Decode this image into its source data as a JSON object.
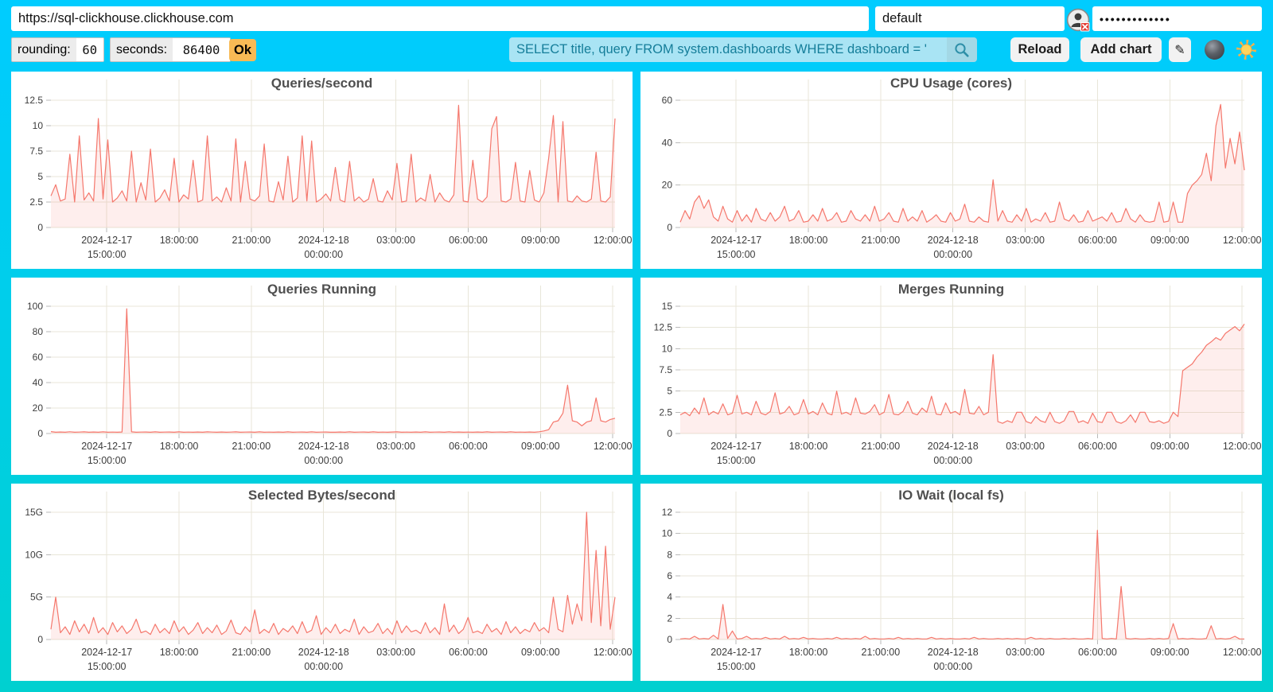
{
  "topbar": {
    "url": "https://sql-clickhouse.clickhouse.com",
    "user": "default",
    "password_masked": "•••••••••••••",
    "rounding_label": "rounding:",
    "rounding_value": "60",
    "seconds_label": "seconds:",
    "seconds_value": "86400",
    "ok_label": "Ok",
    "search_value": "SELECT title, query FROM system.dashboards WHERE dashboard = '",
    "reload_label": "Reload",
    "add_chart_label": "Add chart",
    "edit_icon": "✎"
  },
  "colors": {
    "background_top": "#00ccff",
    "background_bottom": "#00d0d0",
    "line": "#f5776c",
    "fill": "rgba(245,119,108,0.12)",
    "grid": "#e8e6d9",
    "tick": "#b9b9b9",
    "axis_text": "#3c3c3c",
    "ok_accent": "#f8ba55",
    "search_text": "#157e9a"
  },
  "time_axis": {
    "ticks": [
      {
        "line1": "2024-12-17",
        "line2": "15:00:00"
      },
      {
        "line1": "18:00:00",
        "line2": ""
      },
      {
        "line1": "21:00:00",
        "line2": ""
      },
      {
        "line1": "2024-12-18",
        "line2": "00:00:00"
      },
      {
        "line1": "03:00:00",
        "line2": ""
      },
      {
        "line1": "06:00:00",
        "line2": ""
      },
      {
        "line1": "09:00:00",
        "line2": ""
      },
      {
        "line1": "12:00:00",
        "line2": ""
      }
    ]
  },
  "chart_data": [
    {
      "type": "area",
      "title": "Queries/second",
      "ymax": 12.5,
      "yticks": [
        0,
        2.5,
        5,
        7.5,
        10,
        12.5
      ],
      "ytick_labels": [
        "0",
        "2.5",
        "5",
        "7.5",
        "10",
        "12.5"
      ],
      "values": [
        3.1,
        4.2,
        2.6,
        2.8,
        7.2,
        2.5,
        9.0,
        2.7,
        3.4,
        2.6,
        10.7,
        2.8,
        8.6,
        2.5,
        2.9,
        3.6,
        2.6,
        7.5,
        2.5,
        4.4,
        2.7,
        7.7,
        2.5,
        2.9,
        3.7,
        2.6,
        6.8,
        2.5,
        3.2,
        2.8,
        6.6,
        2.5,
        2.7,
        9.0,
        2.6,
        3.0,
        2.5,
        3.9,
        2.6,
        8.7,
        2.5,
        6.5,
        2.8,
        2.6,
        3.1,
        8.2,
        2.6,
        2.5,
        4.5,
        2.7,
        7.0,
        2.5,
        2.9,
        9.0,
        2.6,
        8.5,
        2.5,
        2.8,
        3.3,
        2.6,
        5.9,
        2.7,
        2.5,
        6.5,
        2.6,
        3.0,
        2.5,
        2.8,
        4.8,
        2.6,
        2.5,
        3.6,
        2.7,
        6.3,
        2.5,
        2.6,
        7.2,
        2.5,
        2.9,
        2.6,
        5.2,
        2.5,
        3.4,
        2.7,
        2.5,
        3.2,
        12.0,
        2.6,
        2.5,
        6.6,
        2.8,
        2.5,
        3.0,
        9.7,
        10.9,
        2.6,
        2.5,
        2.8,
        6.4,
        2.6,
        2.5,
        5.6,
        2.7,
        2.5,
        3.4,
        6.8,
        11.0,
        2.5,
        10.4,
        2.6,
        2.5,
        3.1,
        2.6,
        2.5,
        2.8,
        7.4,
        2.6,
        2.5,
        3.0,
        10.7
      ]
    },
    {
      "type": "area",
      "title": "CPU Usage (cores)",
      "ymax": 60,
      "yticks": [
        0,
        20,
        40,
        60
      ],
      "ytick_labels": [
        "0",
        "20",
        "40",
        "60"
      ],
      "values": [
        2.5,
        8,
        4,
        12,
        15,
        9,
        13,
        5,
        3,
        10,
        4,
        2.5,
        8,
        3,
        6,
        2.5,
        9,
        4,
        3,
        7,
        3,
        5,
        10,
        3,
        4,
        8,
        2.5,
        3,
        6,
        3,
        9,
        3,
        4,
        7,
        2.5,
        3,
        8,
        4,
        3,
        6,
        3,
        10,
        3,
        4,
        7,
        3,
        2.5,
        9,
        3,
        5,
        3,
        8,
        2.5,
        4,
        6,
        3,
        2.5,
        7,
        3,
        4,
        11,
        3,
        2.5,
        5,
        3,
        2.5,
        22.5,
        3,
        8,
        3,
        2.5,
        6,
        3,
        9,
        2.5,
        4,
        3,
        7,
        2.5,
        3,
        12,
        4,
        3,
        6,
        2.5,
        3,
        8,
        3,
        4,
        5,
        3,
        7,
        2.5,
        3,
        9,
        4,
        2.5,
        6,
        3,
        2.5,
        3,
        12,
        2.5,
        3,
        12,
        2.5,
        2.5,
        16,
        20,
        22,
        25,
        35,
        22,
        48,
        58,
        28,
        42,
        30,
        45,
        27
      ]
    },
    {
      "type": "area",
      "title": "Queries Running",
      "ymax": 100,
      "yticks": [
        0,
        20,
        40,
        60,
        80,
        100
      ],
      "ytick_labels": [
        "0",
        "20",
        "40",
        "60",
        "80",
        "100"
      ],
      "values": [
        1.5,
        1,
        1.2,
        1,
        1.4,
        1,
        1.1,
        1.3,
        1,
        1.2,
        1,
        1.3,
        1,
        1.1,
        1,
        1.2,
        98,
        1.3,
        1,
        1.1,
        1.2,
        1,
        1.3,
        1,
        1.1,
        1.2,
        1,
        1.3,
        1,
        1.1,
        1,
        1.2,
        1,
        1.3,
        1.1,
        1,
        1.2,
        1,
        1.1,
        1.3,
        1,
        1.1,
        1.2,
        1,
        1.3,
        1,
        1.1,
        1,
        1.2,
        1,
        1.3,
        1,
        1.1,
        1.2,
        1,
        1.3,
        1,
        1.1,
        1.2,
        1,
        1,
        1.2,
        1,
        1.3,
        1,
        1.1,
        1.2,
        1,
        1.3,
        1,
        1.1,
        1,
        1.2,
        1.3,
        1,
        1.1,
        1,
        1.2,
        1,
        1.3,
        1,
        1.1,
        1.2,
        1,
        1.3,
        1,
        1.2,
        1,
        1.1,
        1,
        1.2,
        1,
        1.3,
        1,
        1.1,
        1.2,
        1,
        1.3,
        1,
        1.1,
        1,
        1.2,
        1,
        1.4,
        2,
        3,
        9,
        10,
        16,
        38,
        10,
        9,
        6,
        9,
        10,
        28,
        10,
        9,
        11,
        12
      ]
    },
    {
      "type": "area",
      "title": "Merges Running",
      "ymax": 15,
      "yticks": [
        0,
        2.5,
        5,
        7.5,
        10,
        12.5,
        15
      ],
      "ytick_labels": [
        "0",
        "2.5",
        "5",
        "7.5",
        "10",
        "12.5",
        "15"
      ],
      "values": [
        2.2,
        2.5,
        2.1,
        3.0,
        2.3,
        4.2,
        2.2,
        2.6,
        2.3,
        3.5,
        2.2,
        2.4,
        4.5,
        2.3,
        2.5,
        2.2,
        3.8,
        2.4,
        2.2,
        2.6,
        4.8,
        2.3,
        2.5,
        3.2,
        2.2,
        2.4,
        4.0,
        2.3,
        2.6,
        2.2,
        3.6,
        2.4,
        2.2,
        5.0,
        2.3,
        2.5,
        2.2,
        4.2,
        2.4,
        2.3,
        2.6,
        3.4,
        2.2,
        2.5,
        4.6,
        2.3,
        2.2,
        2.6,
        3.8,
        2.4,
        2.2,
        3.0,
        2.5,
        4.4,
        2.3,
        2.2,
        3.6,
        2.4,
        2.6,
        2.2,
        5.2,
        2.4,
        2.3,
        3.2,
        2.2,
        2.5,
        9.3,
        1.4,
        1.2,
        1.5,
        1.3,
        2.5,
        2.5,
        1.4,
        1.2,
        2.0,
        1.5,
        1.3,
        2.5,
        1.4,
        1.2,
        1.5,
        2.6,
        2.6,
        1.3,
        1.5,
        1.2,
        2.4,
        1.4,
        1.3,
        2.5,
        2.5,
        1.4,
        1.2,
        1.5,
        2.2,
        1.3,
        2.5,
        2.5,
        1.4,
        1.3,
        1.5,
        1.2,
        1.4,
        2.5,
        2.0,
        7.4,
        7.8,
        8.2,
        9.0,
        9.6,
        10.4,
        10.8,
        11.3,
        11.0,
        11.8,
        12.2,
        12.6,
        12.1,
        12.9
      ]
    },
    {
      "type": "area",
      "title": "Selected Bytes/second",
      "ymax": 15,
      "yticks": [
        0,
        5,
        10,
        15
      ],
      "ytick_labels": [
        "0",
        "5G",
        "10G",
        "15G"
      ],
      "values": [
        1.2,
        5.0,
        0.8,
        1.5,
        0.6,
        2.2,
        0.9,
        1.8,
        0.7,
        2.6,
        0.8,
        1.4,
        0.6,
        2.0,
        0.9,
        1.6,
        0.7,
        1.2,
        2.4,
        0.8,
        1.0,
        0.6,
        1.8,
        0.8,
        1.3,
        0.7,
        2.2,
        0.9,
        1.5,
        0.6,
        1.1,
        2.0,
        0.7,
        1.4,
        0.8,
        1.7,
        0.6,
        1.0,
        2.3,
        0.8,
        0.6,
        1.5,
        0.9,
        3.5,
        0.7,
        1.2,
        0.8,
        1.9,
        0.6,
        1.3,
        0.9,
        1.6,
        0.7,
        2.1,
        0.8,
        1.1,
        2.8,
        0.6,
        1.4,
        0.8,
        1.8,
        0.7,
        1.2,
        0.9,
        2.4,
        0.6,
        1.5,
        0.8,
        1.0,
        1.9,
        0.7,
        1.3,
        0.6,
        2.2,
        0.8,
        1.6,
        0.9,
        1.1,
        0.7,
        2.0,
        0.8,
        1.4,
        0.6,
        4.2,
        0.9,
        1.7,
        0.7,
        1.2,
        2.6,
        0.8,
        1.0,
        0.7,
        1.8,
        0.9,
        1.3,
        0.6,
        2.1,
        0.8,
        1.5,
        0.7,
        1.2,
        0.9,
        2.0,
        1.0,
        1.4,
        0.8,
        5.0,
        1.2,
        0.9,
        5.2,
        1.8,
        4.2,
        2.2,
        15.0,
        2.0,
        10.5,
        1.6,
        11.0,
        1.2,
        5.0
      ]
    },
    {
      "type": "area",
      "title": "IO Wait (local fs)",
      "ymax": 12,
      "yticks": [
        0,
        2,
        4,
        6,
        8,
        10,
        12
      ],
      "ytick_labels": [
        "0",
        "2",
        "4",
        "6",
        "8",
        "10",
        "12"
      ],
      "values": [
        0.05,
        0.1,
        0.05,
        0.3,
        0.05,
        0.1,
        0.05,
        0.4,
        0.05,
        3.3,
        0.1,
        0.8,
        0.05,
        0.1,
        0.3,
        0.05,
        0.1,
        0.05,
        0.2,
        0.05,
        0.1,
        0.05,
        0.3,
        0.05,
        0.1,
        0.05,
        0.2,
        0.05,
        0.1,
        0.05,
        0.05,
        0.1,
        0.05,
        0.2,
        0.05,
        0.1,
        0.05,
        0.1,
        0.05,
        0.3,
        0.05,
        0.1,
        0.05,
        0.05,
        0.1,
        0.05,
        0.2,
        0.05,
        0.1,
        0.05,
        0.1,
        0.05,
        0.05,
        0.2,
        0.05,
        0.1,
        0.05,
        0.1,
        0.05,
        0.05,
        0.1,
        0.05,
        0.2,
        0.05,
        0.1,
        0.05,
        0.05,
        0.1,
        0.05,
        0.1,
        0.05,
        0.1,
        0.05,
        0.05,
        0.2,
        0.05,
        0.1,
        0.05,
        0.1,
        0.05,
        0.05,
        0.1,
        0.05,
        0.1,
        0.05,
        0.05,
        0.1,
        0.05,
        10.3,
        0.1,
        0.05,
        0.1,
        0.05,
        5.0,
        0.1,
        0.05,
        0.1,
        0.05,
        0.05,
        0.1,
        0.05,
        0.1,
        0.05,
        0.1,
        1.5,
        0.05,
        0.1,
        0.05,
        0.1,
        0.05,
        0.05,
        0.1,
        1.3,
        0.05,
        0.1,
        0.05,
        0.1,
        0.3,
        0.05,
        0.05
      ]
    }
  ]
}
